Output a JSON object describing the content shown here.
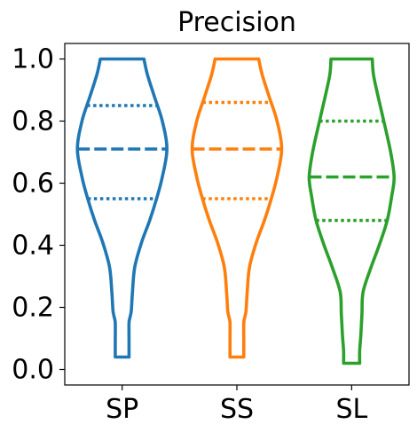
{
  "chart_data": {
    "type": "violin",
    "title": "Precision",
    "xlabel": "",
    "ylabel": "",
    "categories": [
      "SP",
      "SS",
      "SL"
    ],
    "ylim": [
      -0.05,
      1.05
    ],
    "yticks": [
      "0.0",
      "0.2",
      "0.4",
      "0.6",
      "0.8",
      "1.0"
    ],
    "grid": false,
    "series": [
      {
        "category": "SP",
        "color": "#1f77b4",
        "min": 0.04,
        "max": 1.0,
        "q1": 0.55,
        "median": 0.71,
        "q3": 0.85,
        "profile_half_width": [
          [
            0.04,
            0.06
          ],
          [
            0.09,
            0.06
          ],
          [
            0.15,
            0.06
          ],
          [
            0.17,
            0.07
          ],
          [
            0.19,
            0.08
          ],
          [
            0.25,
            0.09
          ],
          [
            0.33,
            0.11
          ],
          [
            0.41,
            0.17
          ],
          [
            0.48,
            0.24
          ],
          [
            0.55,
            0.3
          ],
          [
            0.62,
            0.35
          ],
          [
            0.71,
            0.39
          ],
          [
            0.8,
            0.35
          ],
          [
            0.88,
            0.28
          ],
          [
            0.95,
            0.22
          ],
          [
            1.0,
            0.19
          ]
        ]
      },
      {
        "category": "SS",
        "color": "#ff7f0e",
        "min": 0.04,
        "max": 1.0,
        "q1": 0.55,
        "median": 0.71,
        "q3": 0.86,
        "profile_half_width": [
          [
            0.04,
            0.06
          ],
          [
            0.09,
            0.06
          ],
          [
            0.15,
            0.06
          ],
          [
            0.17,
            0.07
          ],
          [
            0.19,
            0.08
          ],
          [
            0.25,
            0.09
          ],
          [
            0.33,
            0.11
          ],
          [
            0.41,
            0.17
          ],
          [
            0.48,
            0.24
          ],
          [
            0.55,
            0.3
          ],
          [
            0.62,
            0.35
          ],
          [
            0.71,
            0.39
          ],
          [
            0.8,
            0.35
          ],
          [
            0.88,
            0.28
          ],
          [
            0.95,
            0.22
          ],
          [
            1.0,
            0.19
          ]
        ]
      },
      {
        "category": "SL",
        "color": "#2ca02c",
        "min": 0.02,
        "max": 1.0,
        "q1": 0.48,
        "median": 0.62,
        "q3": 0.8,
        "profile_half_width": [
          [
            0.02,
            0.07
          ],
          [
            0.06,
            0.07
          ],
          [
            0.11,
            0.08
          ],
          [
            0.18,
            0.09
          ],
          [
            0.25,
            0.1
          ],
          [
            0.33,
            0.17
          ],
          [
            0.4,
            0.24
          ],
          [
            0.48,
            0.31
          ],
          [
            0.56,
            0.35
          ],
          [
            0.62,
            0.37
          ],
          [
            0.7,
            0.34
          ],
          [
            0.8,
            0.28
          ],
          [
            0.88,
            0.23
          ],
          [
            0.95,
            0.19
          ],
          [
            1.0,
            0.18
          ]
        ]
      }
    ]
  }
}
